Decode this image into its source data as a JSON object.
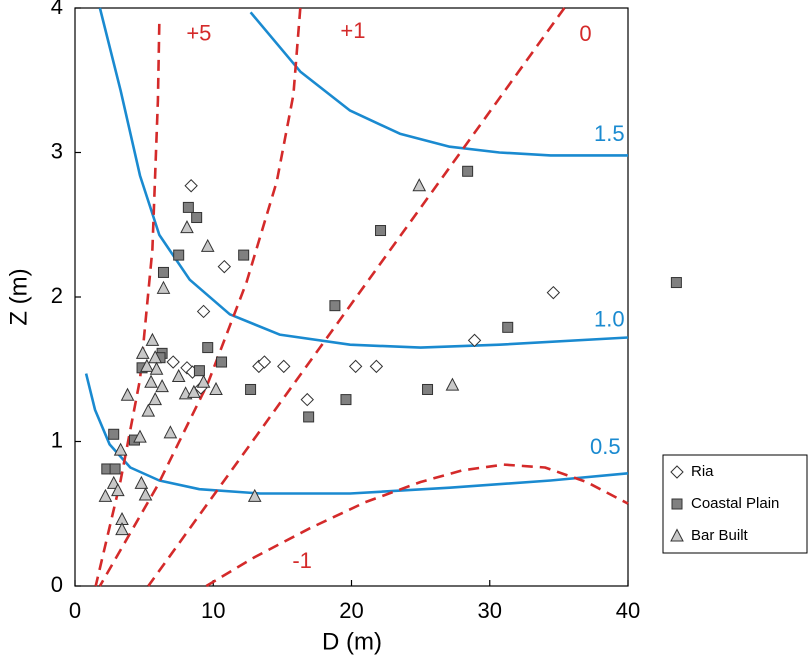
{
  "chart_data": {
    "type": "scatter",
    "xlabel": "D (m)",
    "ylabel": "Z (m)",
    "xlim": [
      0,
      40
    ],
    "ylim": [
      0,
      4
    ],
    "xticks": [
      0,
      10,
      20,
      30,
      40
    ],
    "yticks": [
      0,
      1,
      2,
      3,
      4
    ],
    "legend": "lower right",
    "series": [
      {
        "name": "Ria",
        "marker": "diamond",
        "color": "#ffffff",
        "x": [
          8.4,
          10.8,
          9.3,
          8.1,
          8.5,
          7.1,
          13.3,
          13.7,
          15.1,
          16.8,
          20.3,
          21.8,
          28.9,
          34.6,
          9.1
        ],
        "y": [
          2.77,
          2.21,
          1.9,
          1.51,
          1.48,
          1.55,
          1.52,
          1.55,
          1.52,
          1.29,
          1.52,
          1.52,
          1.7,
          2.03,
          1.37
        ]
      },
      {
        "name": "Coastal Plain",
        "marker": "square",
        "color": "#808080",
        "x": [
          28.4,
          8.2,
          8.8,
          22.1,
          12.2,
          7.5,
          6.4,
          43.5,
          18.8,
          31.3,
          9.6,
          10.6,
          6.3,
          6.15,
          4.85,
          9.0,
          12.7,
          16.9,
          19.6,
          25.5,
          2.8,
          4.3,
          2.3,
          2.9
        ],
        "y": [
          2.87,
          2.62,
          2.55,
          2.46,
          2.29,
          2.29,
          2.17,
          2.1,
          1.94,
          1.79,
          1.65,
          1.55,
          1.61,
          1.58,
          1.51,
          1.49,
          1.36,
          1.17,
          1.29,
          1.36,
          1.05,
          1.01,
          0.81,
          0.81
        ]
      },
      {
        "name": "Bar Built",
        "marker": "triangle",
        "color": "#c8c8c8",
        "x": [
          24.9,
          8.1,
          9.6,
          6.4,
          5.6,
          4.9,
          5.8,
          5.2,
          5.9,
          7.5,
          5.5,
          6.3,
          8.0,
          8.6,
          9.3,
          10.2,
          3.8,
          5.8,
          5.3,
          6.9,
          4.7,
          3.3,
          27.3,
          13.0,
          2.8,
          4.8,
          3.1,
          5.1,
          2.2,
          3.4,
          3.4
        ],
        "y": [
          2.77,
          2.48,
          2.35,
          2.06,
          1.7,
          1.61,
          1.58,
          1.52,
          1.5,
          1.45,
          1.41,
          1.38,
          1.33,
          1.34,
          1.41,
          1.36,
          1.32,
          1.29,
          1.21,
          1.06,
          1.03,
          0.94,
          1.39,
          0.62,
          0.71,
          0.71,
          0.66,
          0.63,
          0.62,
          0.46,
          0.39
        ]
      }
    ],
    "curves": [
      {
        "name": "1.5",
        "color": "#1a8ad0",
        "dashed": false,
        "x": [
          12.7,
          16.3,
          19.9,
          23.5,
          27.1,
          30.7,
          34.4,
          40
        ],
        "y": [
          3.97,
          3.56,
          3.29,
          3.13,
          3.04,
          3.0,
          2.98,
          2.98
        ]
      },
      {
        "name": "1.0",
        "color": "#1a8ad0",
        "dashed": false,
        "x": [
          1.8,
          3.3,
          4.7,
          6.1,
          8.3,
          11.2,
          14.8,
          19.9,
          25.0,
          30.7,
          40
        ],
        "y": [
          4.0,
          3.43,
          2.84,
          2.43,
          2.12,
          1.88,
          1.74,
          1.67,
          1.65,
          1.67,
          1.72
        ]
      },
      {
        "name": "0.5",
        "color": "#1a8ad0",
        "dashed": false,
        "x": [
          0.8,
          1.45,
          2.5,
          4.0,
          6.1,
          9.0,
          13.4,
          19.9,
          27.1,
          34.4,
          40
        ],
        "y": [
          1.47,
          1.22,
          0.98,
          0.82,
          0.73,
          0.67,
          0.64,
          0.64,
          0.68,
          0.73,
          0.78
        ]
      },
      {
        "name": "+5",
        "color": "#d42a2a",
        "dashed": true,
        "x": [
          6.1,
          6.0,
          5.6,
          4.7,
          3.3,
          1.5
        ],
        "y": [
          3.89,
          3.36,
          2.33,
          1.43,
          0.73,
          0
        ]
      },
      {
        "name": "+1",
        "color": "#d42a2a",
        "dashed": true,
        "x": [
          16.3,
          15.8,
          14.6,
          12.4,
          9.6,
          6.0,
          1.8
        ],
        "y": [
          4.0,
          3.4,
          2.8,
          2.1,
          1.4,
          0.7,
          0
        ]
      },
      {
        "name": "0",
        "color": "#d42a2a",
        "dashed": true,
        "x": [
          35.4,
          5.3
        ],
        "y": [
          4.0,
          0
        ]
      },
      {
        "name": "-1",
        "color": "#d42a2a",
        "dashed": true,
        "x": [
          9.5,
          13,
          17,
          21,
          25,
          28,
          31,
          34,
          37,
          40
        ],
        "y": [
          0,
          0.2,
          0.4,
          0.58,
          0.72,
          0.8,
          0.84,
          0.82,
          0.72,
          0.57
        ]
      }
    ]
  }
}
